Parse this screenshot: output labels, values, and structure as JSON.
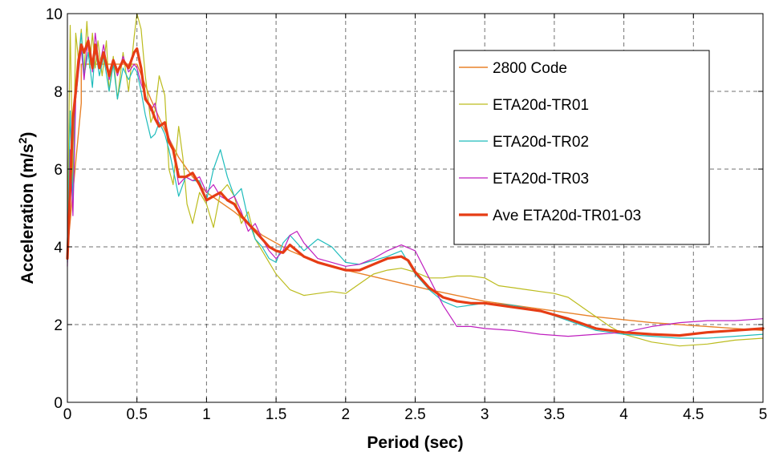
{
  "chart_data": {
    "type": "line",
    "xlabel": "Period (sec)",
    "ylabel": "Acceleration (m/s",
    "ylabel_sup": "2",
    "ylabel_close": ")",
    "xlim": [
      0,
      5
    ],
    "ylim": [
      0,
      10
    ],
    "x_ticks": [
      0,
      0.5,
      1,
      1.5,
      2,
      2.5,
      3,
      3.5,
      4,
      4.5,
      5
    ],
    "x_tick_labels": [
      "0",
      "0.5",
      "1",
      "1.5",
      "2",
      "2.5",
      "3",
      "3.5",
      "4",
      "4.5",
      "5"
    ],
    "y_ticks": [
      0,
      2,
      4,
      6,
      8,
      10
    ],
    "y_tick_labels": [
      "0",
      "2",
      "4",
      "6",
      "8",
      "10"
    ],
    "grid": true,
    "legend_position": "top-right",
    "series": [
      {
        "name": "2800 Code",
        "color": "#e8822a",
        "width": 1.4,
        "x": [
          0,
          0.1,
          0.1,
          0.5,
          0.6,
          0.7,
          0.8,
          0.9,
          1.0,
          1.2,
          1.4,
          1.6,
          1.8,
          2.0,
          2.3,
          2.6,
          3.0,
          3.4,
          3.8,
          4.2,
          4.6,
          5.0
        ],
        "y": [
          3.9,
          7.7,
          8.7,
          8.7,
          7.8,
          7.0,
          6.3,
          5.8,
          5.4,
          4.9,
          4.3,
          3.9,
          3.6,
          3.4,
          3.15,
          2.9,
          2.6,
          2.4,
          2.2,
          2.05,
          1.95,
          1.85
        ]
      },
      {
        "name": "ETA20d-TR01",
        "color": "#bcbc1e",
        "width": 1.2,
        "x": [
          0,
          0.02,
          0.04,
          0.06,
          0.08,
          0.1,
          0.12,
          0.14,
          0.16,
          0.18,
          0.2,
          0.22,
          0.25,
          0.28,
          0.3,
          0.33,
          0.36,
          0.4,
          0.44,
          0.48,
          0.5,
          0.53,
          0.56,
          0.6,
          0.63,
          0.66,
          0.7,
          0.73,
          0.76,
          0.8,
          0.83,
          0.86,
          0.9,
          0.95,
          1.0,
          1.05,
          1.1,
          1.15,
          1.2,
          1.25,
          1.3,
          1.35,
          1.4,
          1.45,
          1.5,
          1.6,
          1.7,
          1.8,
          1.9,
          2.0,
          2.1,
          2.2,
          2.3,
          2.4,
          2.5,
          2.6,
          2.7,
          2.8,
          2.9,
          3.0,
          3.1,
          3.2,
          3.3,
          3.4,
          3.5,
          3.6,
          3.7,
          3.8,
          3.9,
          4.0,
          4.2,
          4.4,
          4.6,
          4.8,
          5.0
        ],
        "y": [
          4.0,
          9.7,
          5.5,
          9.5,
          8.8,
          9.6,
          8.5,
          9.8,
          8.6,
          9.5,
          8.6,
          9.3,
          8.4,
          9.3,
          8.0,
          8.9,
          7.8,
          9.0,
          8.0,
          9.4,
          10.0,
          9.6,
          8.4,
          7.2,
          7.5,
          8.4,
          7.9,
          6.0,
          5.6,
          7.1,
          6.3,
          5.1,
          4.6,
          5.4,
          5.1,
          4.5,
          5.4,
          5.6,
          5.3,
          4.6,
          4.9,
          4.2,
          3.9,
          3.6,
          3.3,
          2.9,
          2.75,
          2.8,
          2.85,
          2.8,
          3.05,
          3.3,
          3.4,
          3.45,
          3.35,
          3.2,
          3.2,
          3.25,
          3.25,
          3.2,
          3.0,
          2.95,
          2.9,
          2.85,
          2.8,
          2.7,
          2.45,
          2.2,
          1.95,
          1.75,
          1.55,
          1.45,
          1.5,
          1.6,
          1.65
        ]
      },
      {
        "name": "ETA20d-TR02",
        "color": "#1fbcbc",
        "width": 1.2,
        "x": [
          0,
          0.02,
          0.04,
          0.06,
          0.08,
          0.1,
          0.12,
          0.15,
          0.18,
          0.2,
          0.23,
          0.26,
          0.3,
          0.33,
          0.36,
          0.4,
          0.44,
          0.48,
          0.5,
          0.53,
          0.56,
          0.6,
          0.63,
          0.66,
          0.7,
          0.73,
          0.76,
          0.8,
          0.85,
          0.9,
          0.95,
          1.0,
          1.05,
          1.1,
          1.15,
          1.2,
          1.25,
          1.3,
          1.35,
          1.4,
          1.45,
          1.5,
          1.55,
          1.6,
          1.7,
          1.8,
          1.9,
          2.0,
          2.1,
          2.2,
          2.3,
          2.4,
          2.5,
          2.6,
          2.7,
          2.8,
          2.9,
          3.0,
          3.2,
          3.4,
          3.6,
          3.8,
          4.0,
          4.2,
          4.4,
          4.6,
          4.8,
          5.0
        ],
        "y": [
          3.6,
          7.5,
          5.1,
          8.2,
          8.8,
          9.5,
          8.4,
          9.0,
          8.1,
          9.1,
          8.4,
          8.9,
          8.0,
          8.7,
          7.8,
          8.6,
          8.3,
          8.6,
          8.5,
          8.0,
          7.4,
          6.8,
          6.9,
          7.2,
          6.9,
          6.5,
          6.0,
          5.3,
          5.8,
          5.7,
          5.7,
          5.2,
          6.0,
          6.5,
          5.8,
          5.3,
          5.5,
          4.7,
          4.2,
          4.0,
          3.7,
          3.6,
          4.1,
          4.3,
          3.9,
          4.2,
          4.0,
          3.6,
          3.55,
          3.65,
          3.75,
          3.9,
          3.3,
          2.9,
          2.6,
          2.45,
          2.5,
          2.55,
          2.5,
          2.35,
          2.1,
          1.85,
          1.75,
          1.7,
          1.65,
          1.65,
          1.7,
          1.75
        ]
      },
      {
        "name": "ETA20d-TR03",
        "color": "#bf1fbf",
        "width": 1.2,
        "x": [
          0,
          0.02,
          0.04,
          0.06,
          0.08,
          0.1,
          0.12,
          0.15,
          0.18,
          0.2,
          0.23,
          0.26,
          0.3,
          0.33,
          0.36,
          0.4,
          0.44,
          0.48,
          0.5,
          0.53,
          0.56,
          0.6,
          0.63,
          0.66,
          0.7,
          0.73,
          0.76,
          0.8,
          0.85,
          0.9,
          0.95,
          1.0,
          1.05,
          1.1,
          1.15,
          1.2,
          1.25,
          1.3,
          1.35,
          1.4,
          1.45,
          1.5,
          1.55,
          1.6,
          1.65,
          1.7,
          1.8,
          1.9,
          2.0,
          2.1,
          2.2,
          2.3,
          2.4,
          2.5,
          2.6,
          2.7,
          2.8,
          2.9,
          3.0,
          3.2,
          3.4,
          3.6,
          3.8,
          4.0,
          4.2,
          4.4,
          4.6,
          4.8,
          5.0
        ],
        "y": [
          3.5,
          6.5,
          4.8,
          7.8,
          8.5,
          9.1,
          8.3,
          9.4,
          8.5,
          9.5,
          8.6,
          9.2,
          8.3,
          8.8,
          8.4,
          8.9,
          8.5,
          8.7,
          8.6,
          8.2,
          7.9,
          7.5,
          7.7,
          7.1,
          7.2,
          6.8,
          6.5,
          5.6,
          5.8,
          5.7,
          5.8,
          5.4,
          5.6,
          5.3,
          5.2,
          5.3,
          4.9,
          4.4,
          4.6,
          4.2,
          3.9,
          3.7,
          3.9,
          4.3,
          4.4,
          4.1,
          3.7,
          3.6,
          3.5,
          3.55,
          3.7,
          3.9,
          4.05,
          3.9,
          3.2,
          2.5,
          1.95,
          1.95,
          1.9,
          1.85,
          1.75,
          1.7,
          1.75,
          1.8,
          1.95,
          2.05,
          2.1,
          2.1,
          2.15
        ]
      },
      {
        "name": "Ave ETA20d-TR01-03",
        "color": "#e63c14",
        "width": 3.2,
        "x": [
          0,
          0.02,
          0.04,
          0.06,
          0.08,
          0.1,
          0.12,
          0.15,
          0.18,
          0.2,
          0.23,
          0.26,
          0.3,
          0.33,
          0.36,
          0.4,
          0.44,
          0.48,
          0.5,
          0.53,
          0.56,
          0.6,
          0.63,
          0.66,
          0.7,
          0.73,
          0.76,
          0.8,
          0.85,
          0.9,
          0.95,
          1.0,
          1.05,
          1.1,
          1.15,
          1.2,
          1.25,
          1.3,
          1.35,
          1.4,
          1.45,
          1.5,
          1.55,
          1.6,
          1.7,
          1.8,
          1.9,
          2.0,
          2.1,
          2.2,
          2.3,
          2.4,
          2.45,
          2.5,
          2.6,
          2.7,
          2.8,
          2.9,
          3.0,
          3.2,
          3.4,
          3.6,
          3.8,
          4.0,
          4.2,
          4.4,
          4.6,
          4.8,
          5.0
        ],
        "y": [
          3.7,
          5.5,
          7.3,
          8.0,
          8.8,
          9.2,
          9.0,
          9.3,
          8.6,
          9.2,
          8.6,
          9.0,
          8.4,
          8.8,
          8.5,
          8.8,
          8.6,
          9.0,
          9.1,
          8.6,
          7.8,
          7.6,
          7.3,
          7.1,
          7.2,
          6.7,
          6.5,
          5.8,
          5.8,
          5.9,
          5.6,
          5.2,
          5.3,
          5.4,
          5.2,
          5.1,
          4.8,
          4.6,
          4.4,
          4.2,
          4.0,
          3.9,
          3.85,
          4.05,
          3.75,
          3.6,
          3.5,
          3.4,
          3.4,
          3.55,
          3.7,
          3.75,
          3.65,
          3.35,
          2.95,
          2.7,
          2.6,
          2.55,
          2.55,
          2.45,
          2.35,
          2.15,
          1.9,
          1.8,
          1.75,
          1.72,
          1.8,
          1.85,
          1.9
        ]
      }
    ]
  }
}
